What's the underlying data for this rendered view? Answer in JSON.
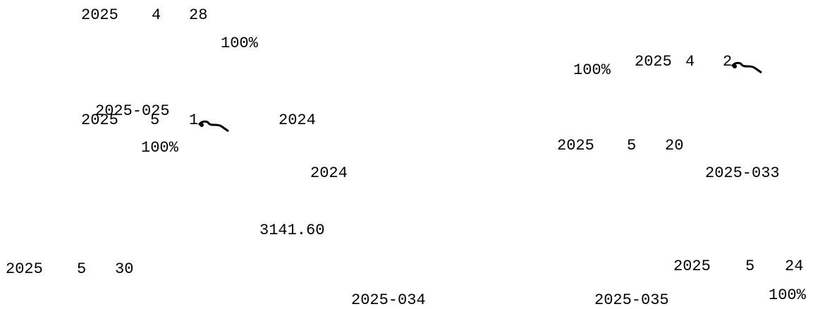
{
  "fragments": [
    "2025",
    "4",
    "28",
    "100%",
    "2025",
    "4",
    "2",
    "100%",
    "2025-025",
    "2025",
    "5",
    "1",
    "2024",
    "100%",
    "2025",
    "5",
    "20",
    "2024",
    "2025-033",
    "3141.60",
    "2025",
    "5",
    "24",
    "2025",
    "5",
    "30",
    "100%",
    "2025-034",
    "2025-035"
  ]
}
